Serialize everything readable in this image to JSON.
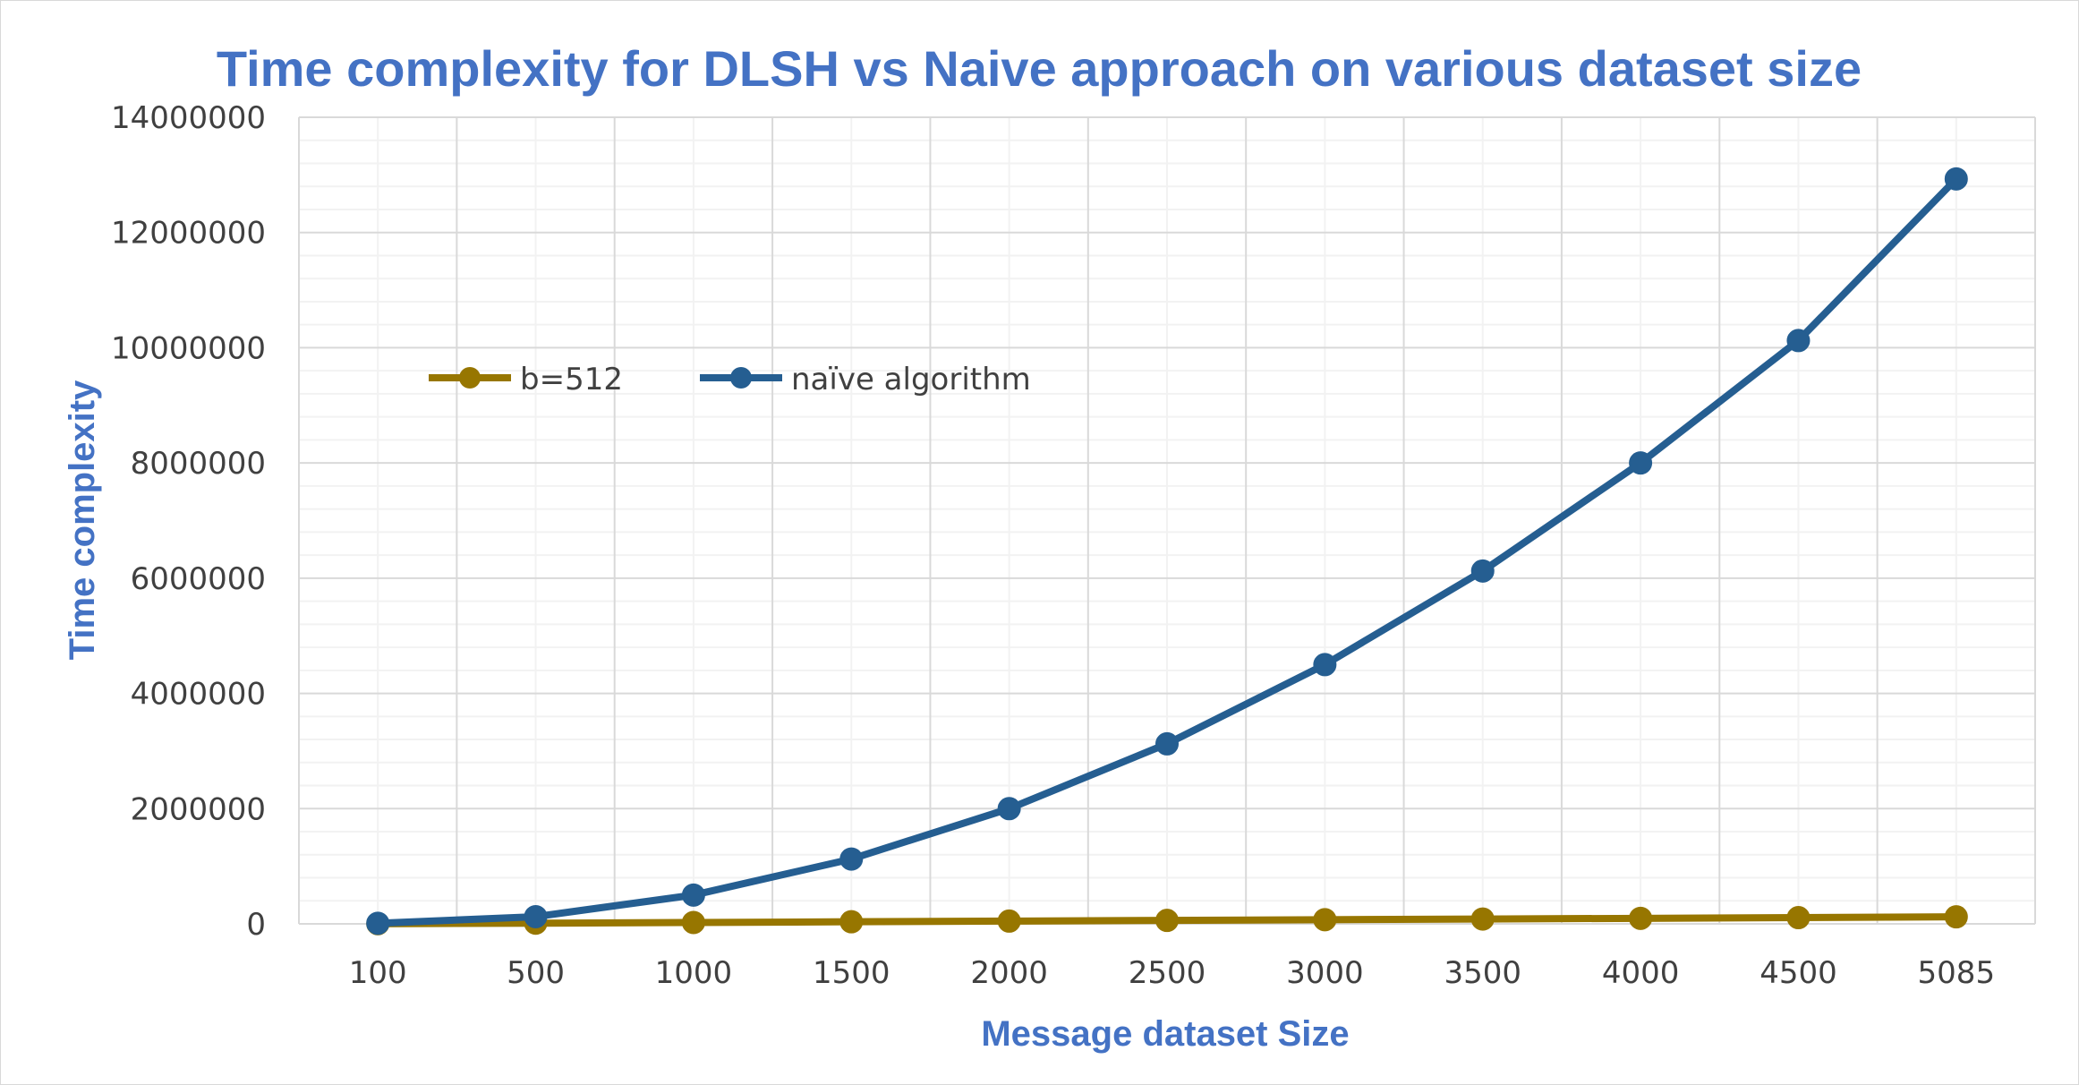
{
  "chart_data": {
    "type": "line",
    "title": "Time complexity for DLSH vs Naive approach on various  dataset size",
    "xlabel": "Message dataset Size",
    "ylabel": "Time complexity",
    "categories": [
      "100",
      "500",
      "1000",
      "1500",
      "2000",
      "2500",
      "3000",
      "3500",
      "4000",
      "4500",
      "5085"
    ],
    "ylim": [
      0,
      14000000
    ],
    "yticks": [
      "0",
      "2000000",
      "4000000",
      "6000000",
      "8000000",
      "10000000",
      "12000000",
      "14000000"
    ],
    "grid": "major and minor",
    "legend_position": "upper-left inside plot",
    "series": [
      {
        "name": "b=512",
        "color": "#977600",
        "values": [
          2400,
          12000,
          24000,
          36000,
          48000,
          60000,
          72000,
          84000,
          96000,
          108000,
          122000
        ]
      },
      {
        "name": "naïve algorithm",
        "color": "#255e91",
        "values": [
          10000,
          125000,
          500000,
          1125000,
          2000000,
          3125000,
          4500000,
          6125000,
          8000000,
          10125000,
          12930000
        ]
      }
    ]
  }
}
